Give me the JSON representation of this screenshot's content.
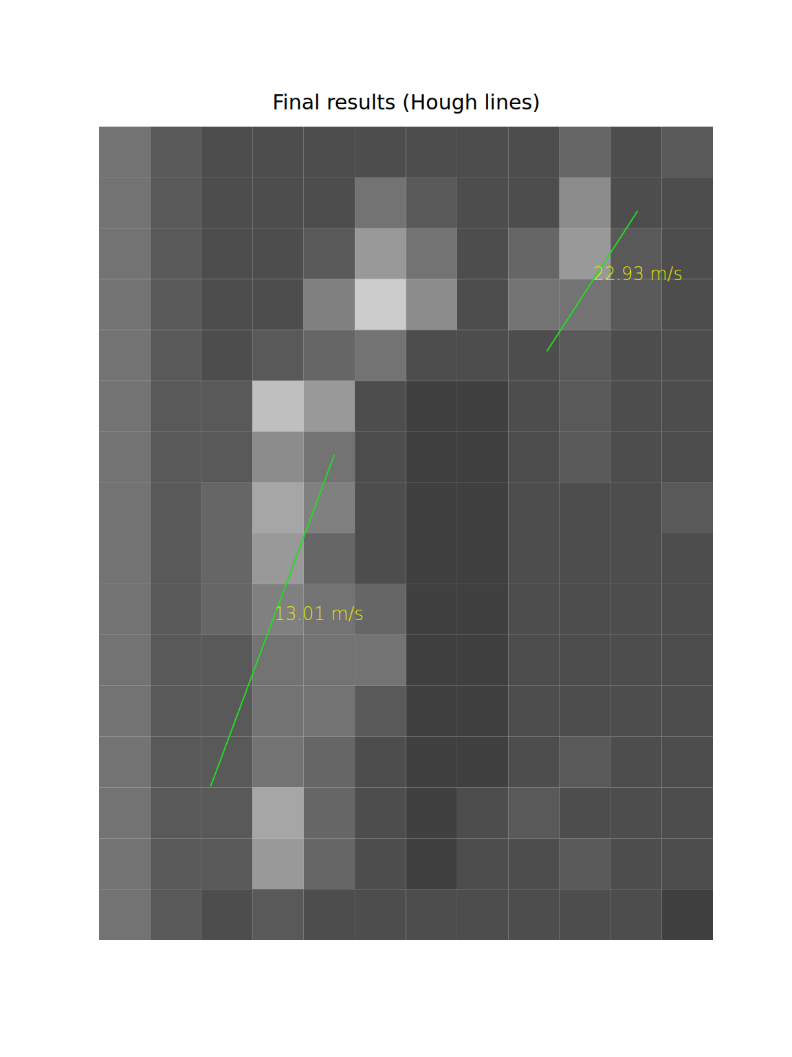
{
  "chart_data": {
    "type": "image",
    "title": "Final results (Hough lines)",
    "tick_labels": false,
    "xlim": [
      0,
      893
    ],
    "ylim": [
      0,
      1182
    ],
    "zlim": [
      0,
      1
    ],
    "cells": [
      [
        0.45,
        0.35,
        0.3,
        0.3,
        0.3,
        0.3,
        0.3,
        0.3,
        0.3,
        0.4,
        0.3,
        0.35
      ],
      [
        0.45,
        0.35,
        0.3,
        0.3,
        0.3,
        0.45,
        0.35,
        0.3,
        0.3,
        0.55,
        0.3,
        0.3
      ],
      [
        0.45,
        0.35,
        0.3,
        0.3,
        0.35,
        0.6,
        0.45,
        0.3,
        0.4,
        0.6,
        0.35,
        0.3
      ],
      [
        0.45,
        0.35,
        0.3,
        0.3,
        0.5,
        0.8,
        0.55,
        0.3,
        0.45,
        0.45,
        0.35,
        0.3
      ],
      [
        0.45,
        0.35,
        0.3,
        0.35,
        0.4,
        0.45,
        0.3,
        0.3,
        0.3,
        0.35,
        0.3,
        0.3
      ],
      [
        0.45,
        0.35,
        0.35,
        0.75,
        0.6,
        0.3,
        0.25,
        0.25,
        0.3,
        0.35,
        0.3,
        0.3
      ],
      [
        0.45,
        0.35,
        0.35,
        0.55,
        0.45,
        0.3,
        0.25,
        0.25,
        0.3,
        0.35,
        0.3,
        0.3
      ],
      [
        0.45,
        0.35,
        0.4,
        0.65,
        0.5,
        0.3,
        0.25,
        0.25,
        0.3,
        0.3,
        0.3,
        0.35
      ],
      [
        0.45,
        0.35,
        0.4,
        0.6,
        0.4,
        0.3,
        0.25,
        0.25,
        0.3,
        0.3,
        0.3,
        0.3
      ],
      [
        0.45,
        0.35,
        0.4,
        0.5,
        0.45,
        0.4,
        0.25,
        0.25,
        0.3,
        0.3,
        0.3,
        0.3
      ],
      [
        0.45,
        0.35,
        0.35,
        0.45,
        0.45,
        0.45,
        0.25,
        0.25,
        0.3,
        0.3,
        0.3,
        0.3
      ],
      [
        0.45,
        0.35,
        0.35,
        0.45,
        0.45,
        0.35,
        0.25,
        0.25,
        0.3,
        0.3,
        0.3,
        0.3
      ],
      [
        0.45,
        0.35,
        0.35,
        0.45,
        0.4,
        0.3,
        0.25,
        0.25,
        0.3,
        0.35,
        0.3,
        0.3
      ],
      [
        0.45,
        0.35,
        0.35,
        0.65,
        0.4,
        0.3,
        0.25,
        0.3,
        0.35,
        0.3,
        0.3,
        0.3
      ],
      [
        0.45,
        0.35,
        0.35,
        0.6,
        0.4,
        0.3,
        0.25,
        0.3,
        0.3,
        0.35,
        0.3,
        0.3
      ],
      [
        0.45,
        0.35,
        0.3,
        0.35,
        0.3,
        0.3,
        0.3,
        0.3,
        0.3,
        0.3,
        0.3,
        0.25
      ]
    ],
    "lines": [
      {
        "x1": 651,
        "y1": 326,
        "x2": 783,
        "y2": 122,
        "label": "22.93 m/s",
        "label_x": 718,
        "label_y": 214
      },
      {
        "x1": 162,
        "y1": 958,
        "x2": 342,
        "y2": 476,
        "label": "13.01 m/s",
        "label_x": 254,
        "label_y": 708
      }
    ],
    "color": "#22dd22",
    "label_color": "#e6e600"
  }
}
